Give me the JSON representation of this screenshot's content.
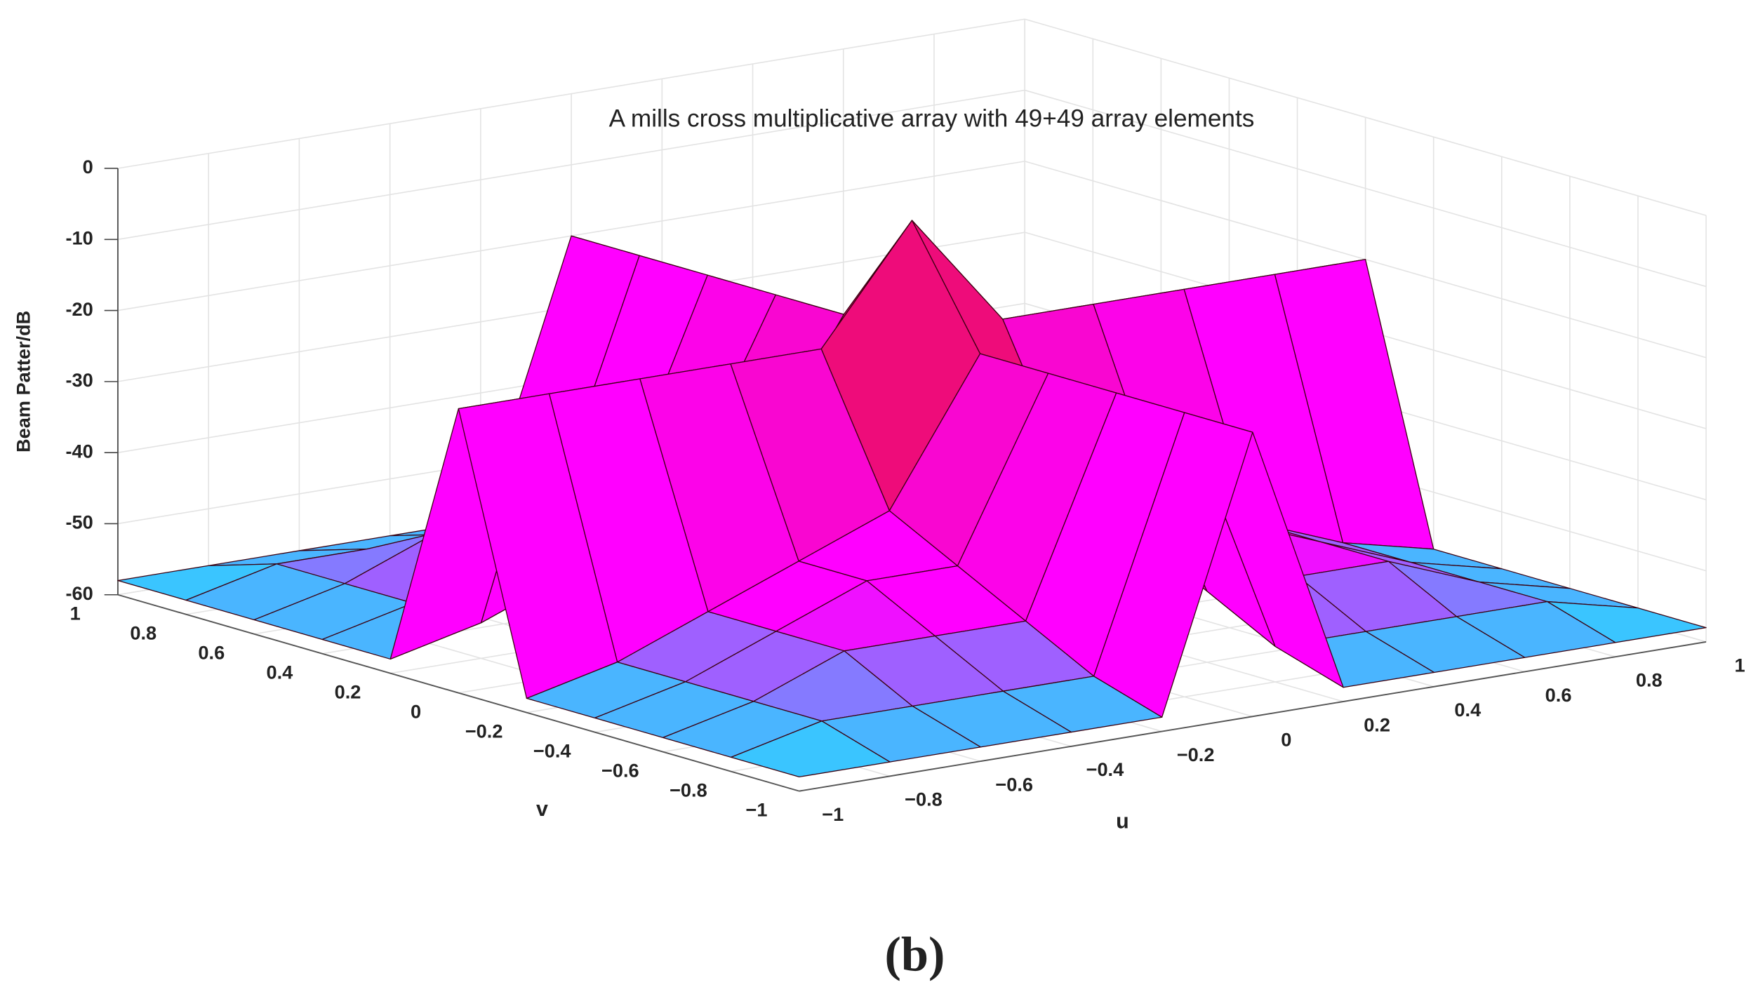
{
  "chart_data": {
    "type": "surface",
    "title": "A mills cross multiplicative array with 49+49 array elements",
    "xlabel": "u",
    "ylabel": "v",
    "zlabel": "Beam Patter/dB",
    "x": [
      -1,
      -0.8,
      -0.6,
      -0.4,
      -0.2,
      0,
      0.2,
      0.4,
      0.6,
      0.8,
      1
    ],
    "y": [
      -1,
      -0.8,
      -0.6,
      -0.4,
      -0.2,
      0,
      0.2,
      0.4,
      0.6,
      0.8,
      1
    ],
    "z": [
      [
        -58,
        -58,
        -58,
        -58,
        -58,
        -20,
        -58,
        -58,
        -58,
        -58,
        -58
      ],
      [
        -58,
        -55,
        -55,
        -55,
        -55,
        -20,
        -55,
        -55,
        -55,
        -55,
        -58
      ],
      [
        -58,
        -55,
        -50,
        -50,
        -50,
        -20,
        -50,
        -50,
        -50,
        -55,
        -58
      ],
      [
        -58,
        -55,
        -50,
        -45,
        -45,
        -20,
        -45,
        -45,
        -50,
        -55,
        -58
      ],
      [
        -58,
        -55,
        -50,
        -45,
        -40,
        -20,
        -40,
        -45,
        -50,
        -55,
        -58
      ],
      [
        -20,
        -20,
        -20,
        -20,
        -20,
        -4,
        -20,
        -20,
        -20,
        -20,
        -20
      ],
      [
        -58,
        -55,
        -50,
        -45,
        -40,
        -20,
        -40,
        -45,
        -50,
        -55,
        -58
      ],
      [
        -58,
        -55,
        -50,
        -45,
        -45,
        -20,
        -45,
        -45,
        -50,
        -55,
        -58
      ],
      [
        -58,
        -55,
        -50,
        -50,
        -50,
        -20,
        -50,
        -50,
        -50,
        -55,
        -58
      ],
      [
        -58,
        -55,
        -55,
        -55,
        -55,
        -20,
        -55,
        -55,
        -55,
        -55,
        -58
      ],
      [
        -58,
        -58,
        -58,
        -58,
        -58,
        -20,
        -58,
        -58,
        -58,
        -58,
        -58
      ]
    ],
    "xlim": [
      -1,
      1
    ],
    "ylim": [
      -1,
      1
    ],
    "zlim": [
      -60,
      0
    ],
    "xticks": [
      {
        "value": -1,
        "label": "−1"
      },
      {
        "value": -0.8,
        "label": "−0.8"
      },
      {
        "value": -0.6,
        "label": "−0.6"
      },
      {
        "value": -0.4,
        "label": "−0.4"
      },
      {
        "value": -0.2,
        "label": "−0.2"
      },
      0,
      0.2,
      0.4,
      0.6,
      0.8,
      1
    ],
    "yticks": [
      {
        "value": -1,
        "label": "−1"
      },
      {
        "value": -0.8,
        "label": "−0.8"
      },
      {
        "value": -0.6,
        "label": "−0.6"
      },
      {
        "value": -0.4,
        "label": "−0.4"
      },
      {
        "value": -0.2,
        "label": "−0.2"
      },
      0,
      0.2,
      0.4,
      0.6,
      0.8,
      1
    ],
    "zticks": [
      -60,
      -50,
      -40,
      -30,
      -20,
      -10,
      0
    ],
    "colormap": [
      "#00ffff",
      "#ff00ff",
      "#ff00ff",
      "#f0108a",
      "#e8004a",
      "#ff0000"
    ],
    "grid": true
  },
  "caption": "(b)"
}
